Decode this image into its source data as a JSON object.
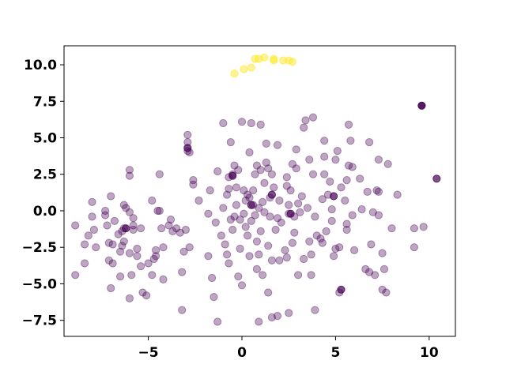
{
  "chart_data": {
    "type": "scatter",
    "title": "",
    "xlabel": "",
    "ylabel": "",
    "xlim": [
      -9.5,
      11.4
    ],
    "ylim": [
      -8.6,
      11.3
    ],
    "xticks": [
      -5,
      0,
      5,
      10
    ],
    "yticks": [
      -7.5,
      -5.0,
      -2.5,
      0.0,
      2.5,
      5.0,
      7.5,
      10.0
    ],
    "xtick_labels": [
      "−5",
      "0",
      "5",
      "10"
    ],
    "ytick_labels": [
      "−7.5",
      "−5.0",
      "−2.5",
      "0.0",
      "2.5",
      "5.0",
      "7.5",
      "10.0"
    ],
    "grid": false,
    "legend": "none",
    "colors": {
      "main": "#440154",
      "cluster": "#fde725"
    },
    "series": [
      {
        "color": "#440154",
        "opacity": 0.35,
        "points": [
          [
            -8.9,
            -1.0
          ],
          [
            -8.9,
            -4.4
          ],
          [
            -8.4,
            -2.3
          ],
          [
            -8.4,
            -3.6
          ],
          [
            -8.2,
            -1.7
          ],
          [
            -8.0,
            -0.4
          ],
          [
            -8.0,
            0.6
          ],
          [
            -7.9,
            -1.3
          ],
          [
            -7.8,
            -2.5
          ],
          [
            -7.3,
            -0.3
          ],
          [
            -7.3,
            0.0
          ],
          [
            -7.2,
            -1.0
          ],
          [
            -7.1,
            -2.2
          ],
          [
            -7.1,
            -3.4
          ],
          [
            -7.0,
            -5.3
          ],
          [
            -7.0,
            1.0
          ],
          [
            -6.9,
            -2.3
          ],
          [
            -6.9,
            -3.6
          ],
          [
            -6.8,
            -0.7
          ],
          [
            -6.6,
            -1.6
          ],
          [
            -6.5,
            -2.8
          ],
          [
            -6.5,
            -4.5
          ],
          [
            -6.4,
            -1.4
          ],
          [
            -6.4,
            -2.4
          ],
          [
            -6.3,
            0.4
          ],
          [
            -6.3,
            -1.2
          ],
          [
            -6.3,
            -2.1
          ],
          [
            -6.2,
            0.2
          ],
          [
            -6.0,
            -0.1
          ],
          [
            -6.0,
            -2.9
          ],
          [
            -6.0,
            -6.0
          ],
          [
            -6.0,
            2.4
          ],
          [
            -6.0,
            2.8
          ],
          [
            -5.9,
            -4.4
          ],
          [
            -5.8,
            -1.0
          ],
          [
            -5.8,
            -1.3
          ],
          [
            -5.8,
            -0.5
          ],
          [
            -5.6,
            -3.1
          ],
          [
            -5.6,
            -2.6
          ],
          [
            -5.4,
            -1.2
          ],
          [
            -5.4,
            -3.8
          ],
          [
            -5.3,
            -5.6
          ],
          [
            -5.1,
            -5.8
          ],
          [
            -5.0,
            -3.6
          ],
          [
            -4.8,
            0.7
          ],
          [
            -4.8,
            -4.4
          ],
          [
            -4.7,
            -3.3
          ],
          [
            -4.6,
            -3.1
          ],
          [
            -4.6,
            -2.7
          ],
          [
            -4.5,
            0.0
          ],
          [
            -4.4,
            0.0
          ],
          [
            -4.4,
            2.5
          ],
          [
            -4.3,
            -1.2
          ],
          [
            -4.2,
            -2.5
          ],
          [
            -4.2,
            -4.7
          ],
          [
            -3.9,
            -1.0
          ],
          [
            -3.8,
            -0.6
          ],
          [
            -3.7,
            -1.4
          ],
          [
            -3.5,
            -1.2
          ],
          [
            -3.3,
            -1.5
          ],
          [
            -3.2,
            -6.8
          ],
          [
            -3.2,
            -4.2
          ],
          [
            -3.1,
            -2.8
          ],
          [
            -3.0,
            -1.3
          ],
          [
            -2.9,
            4.1
          ],
          [
            -2.9,
            4.7
          ],
          [
            -2.9,
            5.2
          ],
          [
            -2.8,
            4.0
          ],
          [
            -2.8,
            -2.5
          ],
          [
            -2.6,
            2.1
          ],
          [
            -2.6,
            1.8
          ],
          [
            -2.3,
            0.7
          ],
          [
            -1.8,
            -3.1
          ],
          [
            -1.8,
            -0.2
          ],
          [
            -1.7,
            1.4
          ],
          [
            -1.6,
            -4.6
          ],
          [
            -1.5,
            -5.9
          ],
          [
            -1.4,
            -0.8
          ],
          [
            -1.3,
            -7.6
          ],
          [
            -1.3,
            2.7
          ],
          [
            -1.1,
            -1.7
          ],
          [
            -1.0,
            0.2
          ],
          [
            -1.0,
            6.0
          ],
          [
            -0.9,
            -2.3
          ],
          [
            -0.8,
            1.1
          ],
          [
            -0.8,
            -3.0
          ],
          [
            -0.7,
            -3.6
          ],
          [
            -0.7,
            2.3
          ],
          [
            -0.7,
            1.5
          ],
          [
            -0.6,
            -0.6
          ],
          [
            -0.6,
            4.7
          ],
          [
            -0.5,
            -1.3
          ],
          [
            -0.5,
            2.5
          ],
          [
            -0.4,
            -0.4
          ],
          [
            -0.4,
            3.1
          ],
          [
            -0.3,
            1.6
          ],
          [
            -0.3,
            0.4
          ],
          [
            -0.2,
            -4.5
          ],
          [
            -0.2,
            2.8
          ],
          [
            -0.1,
            -2.6
          ],
          [
            -0.1,
            -0.6
          ],
          [
            0.0,
            6.1
          ],
          [
            0.0,
            -5.1
          ],
          [
            0.1,
            -0.2
          ],
          [
            0.1,
            1.4
          ],
          [
            0.2,
            0.7
          ],
          [
            0.2,
            -1.1
          ],
          [
            0.3,
            1.1
          ],
          [
            0.3,
            -1.7
          ],
          [
            0.4,
            0.9
          ],
          [
            0.4,
            -3.1
          ],
          [
            0.4,
            4.0
          ],
          [
            0.5,
            -0.7
          ],
          [
            0.5,
            6.0
          ],
          [
            0.6,
            1.4
          ],
          [
            0.6,
            0.4
          ],
          [
            0.7,
            2.5
          ],
          [
            0.7,
            -0.3
          ],
          [
            0.8,
            3.1
          ],
          [
            0.8,
            -2.1
          ],
          [
            0.8,
            -4.0
          ],
          [
            0.9,
            -3.0
          ],
          [
            0.9,
            0.2
          ],
          [
            0.9,
            -7.6
          ],
          [
            1.0,
            2.8
          ],
          [
            1.0,
            -1.4
          ],
          [
            1.0,
            5.9
          ],
          [
            1.1,
            -4.4
          ],
          [
            1.1,
            0.6
          ],
          [
            1.2,
            -0.1
          ],
          [
            1.2,
            1.9
          ],
          [
            1.3,
            4.6
          ],
          [
            1.3,
            3.3
          ],
          [
            1.4,
            -2.4
          ],
          [
            1.4,
            -5.6
          ],
          [
            1.4,
            2.9
          ],
          [
            1.5,
            -0.4
          ],
          [
            1.5,
            0.9
          ],
          [
            1.6,
            -7.3
          ],
          [
            1.6,
            -3.4
          ],
          [
            1.6,
            2.5
          ],
          [
            1.7,
            1.6
          ],
          [
            1.8,
            -1.3
          ],
          [
            1.9,
            -7.2
          ],
          [
            1.9,
            -0.5
          ],
          [
            1.9,
            4.5
          ],
          [
            2.0,
            -3.4
          ],
          [
            2.0,
            0.7
          ],
          [
            2.1,
            -0.8
          ],
          [
            2.3,
            -2.7
          ],
          [
            2.4,
            1.7
          ],
          [
            2.4,
            -3.2
          ],
          [
            2.4,
            2.3
          ],
          [
            2.5,
            -0.2
          ],
          [
            2.5,
            -7.0
          ],
          [
            2.5,
            0.4
          ],
          [
            2.6,
            1.4
          ],
          [
            2.7,
            3.2
          ],
          [
            2.7,
            -2.2
          ],
          [
            2.8,
            -0.4
          ],
          [
            2.8,
            -1.5
          ],
          [
            2.9,
            4.2
          ],
          [
            2.9,
            2.9
          ],
          [
            3.0,
            -4.4
          ],
          [
            3.0,
            0.5
          ],
          [
            3.1,
            -0.1
          ],
          [
            3.2,
            1.0
          ],
          [
            3.3,
            5.7
          ],
          [
            3.3,
            -3.3
          ],
          [
            3.4,
            6.2
          ],
          [
            3.5,
            0.2
          ],
          [
            3.6,
            3.5
          ],
          [
            3.6,
            -2.1
          ],
          [
            3.7,
            -3.0
          ],
          [
            3.7,
            -4.4
          ],
          [
            3.8,
            6.4
          ],
          [
            3.8,
            2.5
          ],
          [
            3.9,
            -6.8
          ],
          [
            3.9,
            -0.4
          ],
          [
            4.0,
            -1.7
          ],
          [
            4.2,
            -1.9
          ],
          [
            4.3,
            -2.2
          ],
          [
            4.3,
            0.8
          ],
          [
            4.4,
            3.7
          ],
          [
            4.4,
            4.8
          ],
          [
            4.4,
            2.5
          ],
          [
            4.5,
            -1.4
          ],
          [
            4.6,
            1.1
          ],
          [
            4.7,
            2.0
          ],
          [
            4.8,
            0.1
          ],
          [
            4.8,
            -0.7
          ],
          [
            4.9,
            -3.1
          ],
          [
            5.0,
            -2.6
          ],
          [
            5.0,
            3.5
          ],
          [
            5.1,
            4.1
          ],
          [
            5.2,
            -2.5
          ],
          [
            5.2,
            -5.6
          ],
          [
            5.3,
            1.6
          ],
          [
            5.5,
            0.7
          ],
          [
            5.6,
            -0.9
          ],
          [
            5.6,
            2.1
          ],
          [
            5.6,
            -1.3
          ],
          [
            5.7,
            5.9
          ],
          [
            5.7,
            3.1
          ],
          [
            5.8,
            4.8
          ],
          [
            5.9,
            -0.3
          ],
          [
            5.9,
            3.0
          ],
          [
            6.0,
            -2.7
          ],
          [
            6.3,
            2.2
          ],
          [
            6.4,
            0.1
          ],
          [
            6.6,
            -4.0
          ],
          [
            6.7,
            1.3
          ],
          [
            6.8,
            4.7
          ],
          [
            6.8,
            -4.2
          ],
          [
            6.9,
            -2.3
          ],
          [
            7.0,
            -0.1
          ],
          [
            7.1,
            -4.4
          ],
          [
            7.2,
            1.4
          ],
          [
            7.3,
            -0.3
          ],
          [
            7.3,
            1.3
          ],
          [
            7.3,
            3.5
          ],
          [
            7.5,
            -5.4
          ],
          [
            7.5,
            -2.9
          ],
          [
            7.6,
            -4.0
          ],
          [
            7.7,
            -5.6
          ],
          [
            7.8,
            3.2
          ],
          [
            8.0,
            -1.2
          ],
          [
            8.3,
            1.1
          ],
          [
            9.2,
            -2.5
          ],
          [
            9.2,
            -1.2
          ],
          [
            9.7,
            -1.1
          ]
        ]
      },
      {
        "color": "#440154",
        "opacity": 0.7,
        "points": [
          [
            5.3,
            -5.4
          ],
          [
            -6.2,
            -1.2
          ],
          [
            10.4,
            2.2
          ],
          [
            1.6,
            1.1
          ],
          [
            -2.9,
            4.3
          ],
          [
            -0.5,
            2.4
          ],
          [
            0.5,
            0.4
          ],
          [
            2.6,
            -0.2
          ],
          [
            4.9,
            1.0
          ]
        ]
      },
      {
        "color": "#440154",
        "opacity": 0.9,
        "points": [
          [
            9.6,
            7.2
          ]
        ]
      },
      {
        "color": "#fde725",
        "opacity": 0.5,
        "points": [
          [
            -0.4,
            9.4
          ],
          [
            0.1,
            9.7
          ],
          [
            0.5,
            9.8
          ],
          [
            0.7,
            10.4
          ],
          [
            0.9,
            10.4
          ],
          [
            1.2,
            10.5
          ],
          [
            1.7,
            10.4
          ],
          [
            1.7,
            10.3
          ],
          [
            2.2,
            10.3
          ],
          [
            2.5,
            10.3
          ],
          [
            2.7,
            10.2
          ]
        ]
      }
    ]
  }
}
